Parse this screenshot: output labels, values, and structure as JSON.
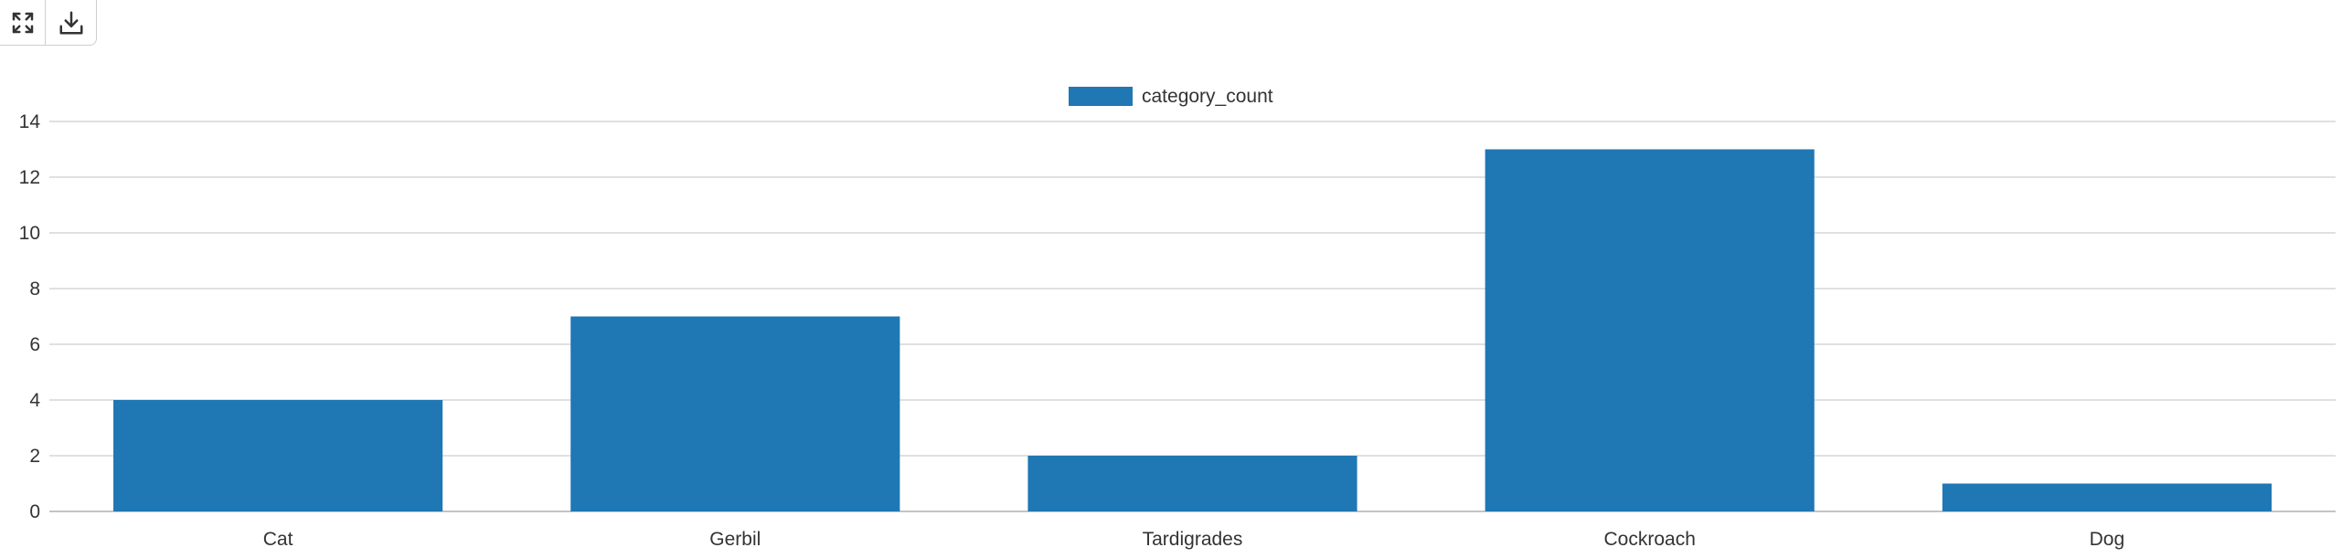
{
  "toolbar": {
    "fullscreen_icon": "expand-arrows-icon",
    "download_icon": "download-icon"
  },
  "colors": {
    "bar": "#1f77b4",
    "grid": "#d6d6d6",
    "axis": "#b0b0b0",
    "text": "#333333"
  },
  "chart_data": {
    "type": "bar",
    "categories": [
      "Cat",
      "Gerbil",
      "Tardigrades",
      "Cockroach",
      "Dog"
    ],
    "series": [
      {
        "name": "category_count",
        "values": [
          4,
          7,
          2,
          13,
          1
        ]
      }
    ],
    "title": "",
    "xlabel": "",
    "ylabel": "",
    "ylim": [
      0,
      14
    ],
    "yticks": [
      0,
      2,
      4,
      6,
      8,
      10,
      12,
      14
    ],
    "grid": true,
    "legend": "top-center"
  }
}
